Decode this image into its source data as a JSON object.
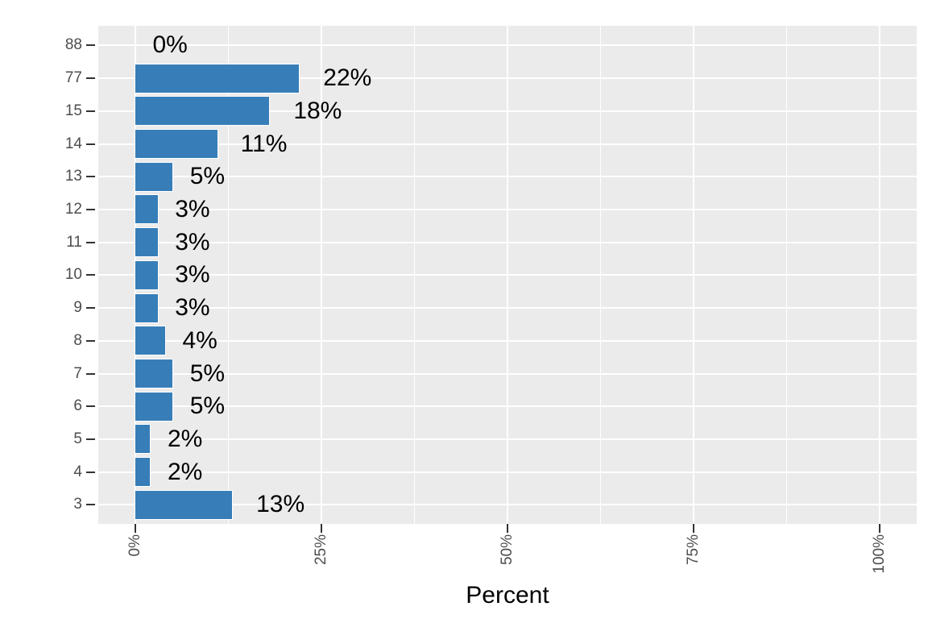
{
  "chart_data": {
    "type": "bar",
    "orientation": "horizontal",
    "title": "",
    "xlabel": "Percent",
    "ylabel": "",
    "categories": [
      "88",
      "77",
      "15",
      "14",
      "13",
      "12",
      "11",
      "10",
      "9",
      "8",
      "7",
      "6",
      "5",
      "4",
      "3"
    ],
    "values": [
      0,
      22,
      18,
      11,
      5,
      3,
      3,
      3,
      3,
      4,
      5,
      5,
      2,
      2,
      13
    ],
    "bar_labels": [
      "0%",
      "22%",
      "18%",
      "11%",
      "5%",
      "3%",
      "3%",
      "3%",
      "3%",
      "4%",
      "5%",
      "5%",
      "2%",
      "2%",
      "13%"
    ],
    "x_tick_labels": [
      "0%",
      "25%",
      "50%",
      "75%",
      "100%"
    ],
    "x_tick_values": [
      0,
      25,
      50,
      75,
      100
    ],
    "x_minor_tick_values": [
      12.5,
      37.5,
      62.5,
      87.5
    ],
    "xlim": [
      0,
      100
    ],
    "grid": true,
    "legend": false,
    "colors": {
      "bar_fill": "#377EB8",
      "bar_border": "#FFFFFF",
      "panel_background": "#EBEBEB",
      "gridline": "#FFFFFF",
      "axis_text": "#4D4D4D",
      "tick_mark": "#333333",
      "bar_label_text": "#000000",
      "axis_title_text": "#000000",
      "figure_background": "#FFFFFF"
    }
  }
}
